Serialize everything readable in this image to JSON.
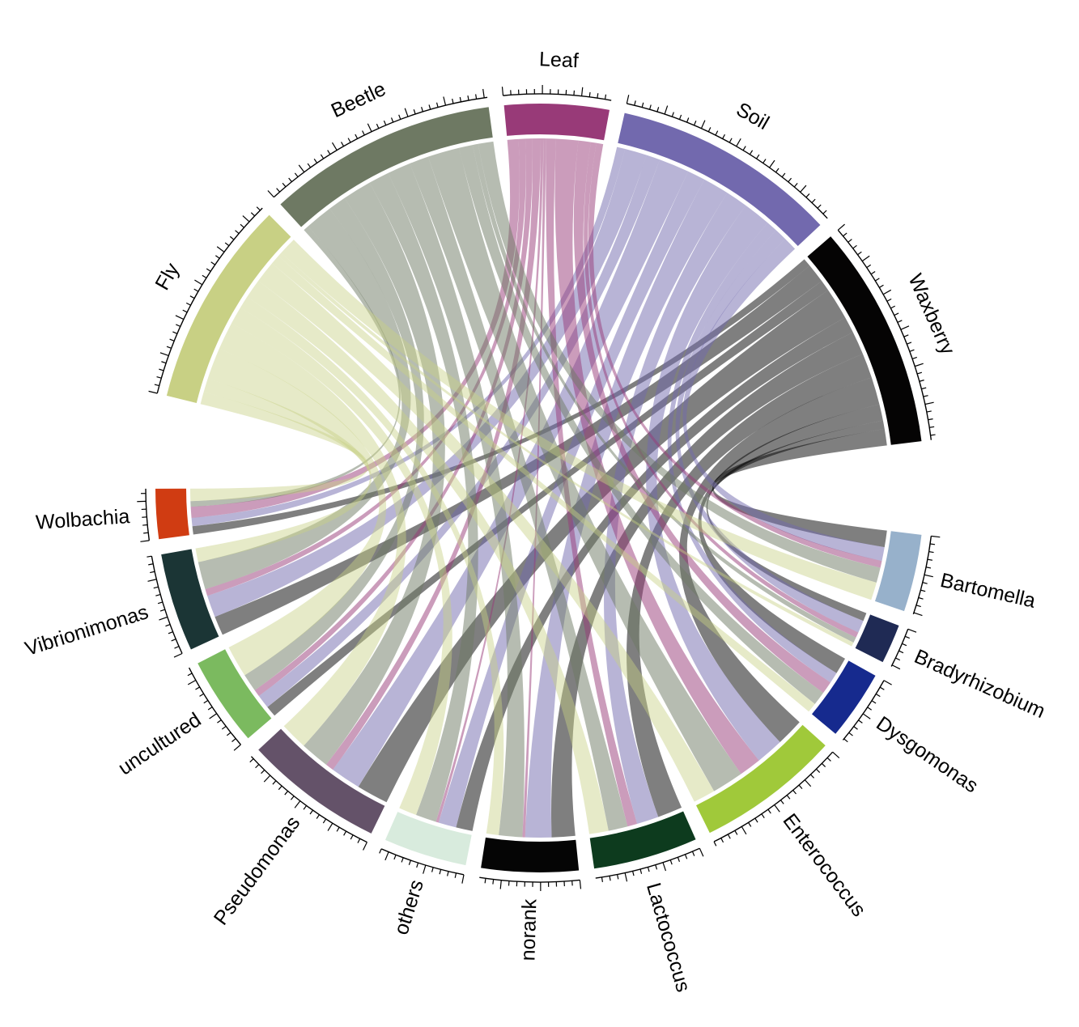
{
  "chart_data": {
    "type": "chord",
    "sectors": [
      {
        "name": "Fly",
        "color": "#c8d084",
        "group": "sample"
      },
      {
        "name": "Beetle",
        "color": "#6e7963",
        "group": "sample"
      },
      {
        "name": "Leaf",
        "color": "#983a78",
        "group": "sample"
      },
      {
        "name": "Soil",
        "color": "#7269ae",
        "group": "sample"
      },
      {
        "name": "Waxberry",
        "color": "#050404",
        "group": "sample"
      },
      {
        "name": "Bartomella",
        "color": "#97b1cb",
        "group": "genus"
      },
      {
        "name": "Bradyrhizobium",
        "color": "#1f2a54",
        "group": "genus"
      },
      {
        "name": "Dysgomonas",
        "color": "#162a8e",
        "group": "genus"
      },
      {
        "name": "Enterococcus",
        "color": "#a0c93a",
        "group": "genus"
      },
      {
        "name": "Lactococcus",
        "color": "#0d3b1e",
        "group": "genus"
      },
      {
        "name": "norank",
        "color": "#050505",
        "group": "genus"
      },
      {
        "name": "others",
        "color": "#d8ebdd",
        "group": "genus"
      },
      {
        "name": "Pseudomonas",
        "color": "#645269",
        "group": "genus"
      },
      {
        "name": "uncultured",
        "color": "#7bba5f",
        "group": "genus"
      },
      {
        "name": "Vibrionimonas",
        "color": "#1b3535",
        "group": "genus"
      },
      {
        "name": "Wolbachia",
        "color": "#d03c12",
        "group": "genus"
      }
    ],
    "flows": [
      {
        "from": "Waxberry",
        "to": [
          "Bartomella",
          "Bradyrhizobium",
          "Dysgomonas",
          "Enterococcus",
          "Lactococcus",
          "norank",
          "others",
          "Pseudomonas",
          "uncultured",
          "Vibrionimonas",
          "Wolbachia"
        ],
        "values": [
          1.2,
          0.6,
          1.2,
          2.0,
          1.8,
          1.7,
          1.2,
          2.3,
          0.8,
          1.4,
          0.6
        ]
      },
      {
        "from": "Soil",
        "to": [
          "Bartomella",
          "Bradyrhizobium",
          "Dysgomonas",
          "Enterococcus",
          "Lactococcus",
          "norank",
          "others",
          "Pseudomonas",
          "uncultured",
          "Vibrionimonas",
          "Wolbachia"
        ],
        "values": [
          1.0,
          0.9,
          0.8,
          2.0,
          1.6,
          1.9,
          1.3,
          2.2,
          1.0,
          1.6,
          0.6
        ]
      },
      {
        "from": "Leaf",
        "to": [
          "Bartomella",
          "Bradyrhizobium",
          "Dysgomonas",
          "Enterococcus",
          "Lactococcus",
          "norank",
          "others",
          "Pseudomonas",
          "uncultured",
          "Vibrionimonas",
          "Wolbachia"
        ],
        "values": [
          0.5,
          0.4,
          0.9,
          1.6,
          0.7,
          0.2,
          0.2,
          0.6,
          0.5,
          0.5,
          0.8
        ]
      },
      {
        "from": "Beetle",
        "to": [
          "Bartomella",
          "Bradyrhizobium",
          "Dysgomonas",
          "Enterococcus",
          "Lactococcus",
          "norank",
          "others",
          "Pseudomonas",
          "uncultured",
          "Vibrionimonas",
          "Wolbachia"
        ],
        "values": [
          1.1,
          0.4,
          1.0,
          2.3,
          1.4,
          1.7,
          1.5,
          2.1,
          1.3,
          2.0,
          0.4
        ]
      },
      {
        "from": "Fly",
        "to": [
          "Bartomella",
          "Bradyrhizobium",
          "Dysgomonas",
          "Enterococcus",
          "Lactococcus",
          "norank",
          "others",
          "Pseudomonas",
          "uncultured",
          "Vibrionimonas",
          "Wolbachia"
        ],
        "values": [
          1.3,
          0.3,
          0.7,
          1.6,
          1.4,
          0.9,
          1.3,
          2.0,
          2.3,
          1.0,
          0.9
        ]
      }
    ]
  }
}
